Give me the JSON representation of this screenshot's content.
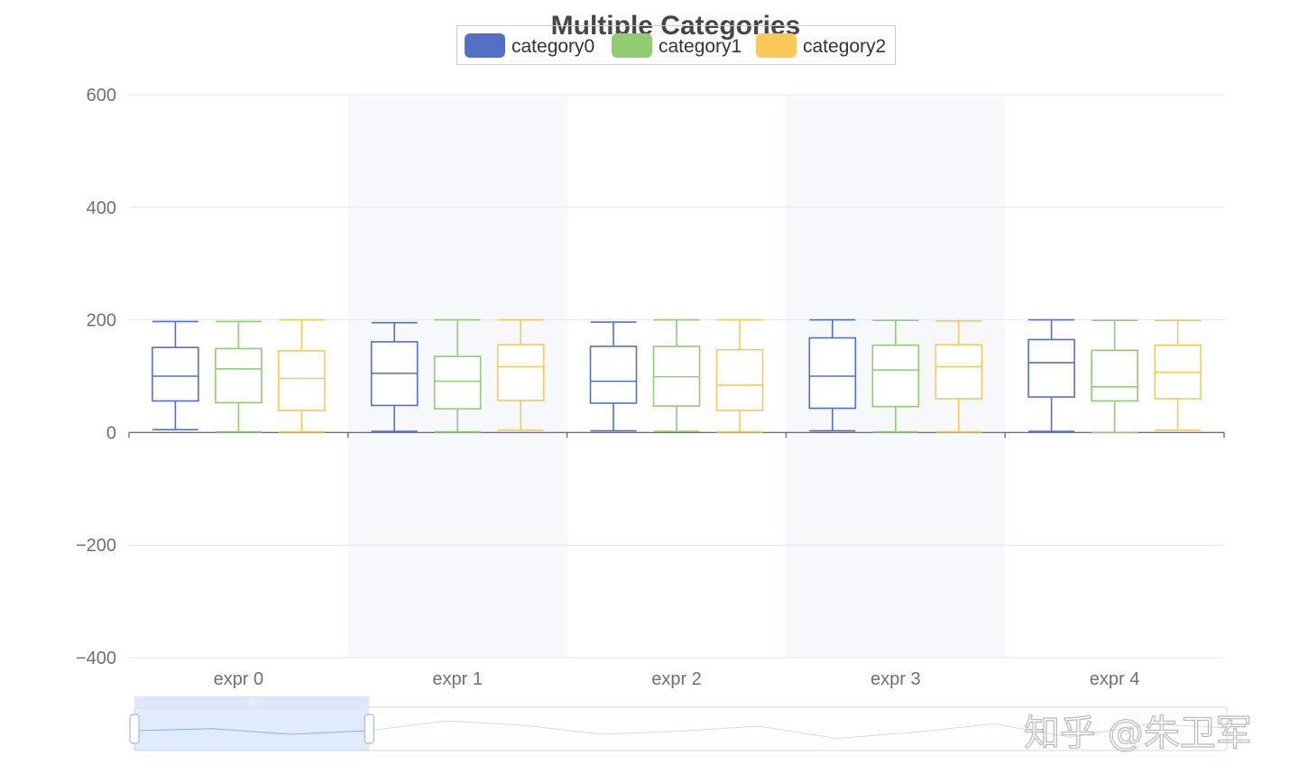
{
  "chart_data": {
    "type": "boxplot",
    "title": "Multiple Categories",
    "categories": [
      "expr 0",
      "expr 1",
      "expr 2",
      "expr 3",
      "expr 4"
    ],
    "ylim": [
      -400,
      600
    ],
    "yticks": [
      -400,
      -200,
      0,
      200,
      400,
      600
    ],
    "ytick_labels": [
      "−400",
      "−200",
      "0",
      "200",
      "400",
      "600"
    ],
    "grid": true,
    "legend_position": "top-center",
    "series": [
      {
        "name": "category0",
        "color": "#5470c6",
        "boxes": [
          {
            "min": 5,
            "q1": 56,
            "median": 100,
            "q3": 151,
            "max": 197
          },
          {
            "min": 2,
            "q1": 48,
            "median": 105,
            "q3": 161,
            "max": 195
          },
          {
            "min": 3,
            "q1": 52,
            "median": 91,
            "q3": 153,
            "max": 196
          },
          {
            "min": 3,
            "q1": 43,
            "median": 100,
            "q3": 168,
            "max": 200
          },
          {
            "min": 2,
            "q1": 63,
            "median": 124,
            "q3": 165,
            "max": 200
          }
        ]
      },
      {
        "name": "category1",
        "color": "#91cc75",
        "boxes": [
          {
            "min": 1,
            "q1": 53,
            "median": 113,
            "q3": 149,
            "max": 197
          },
          {
            "min": 1,
            "q1": 42,
            "median": 91,
            "q3": 135,
            "max": 200
          },
          {
            "min": 2,
            "q1": 47,
            "median": 99,
            "q3": 153,
            "max": 200
          },
          {
            "min": 1,
            "q1": 46,
            "median": 111,
            "q3": 155,
            "max": 199
          },
          {
            "min": 0,
            "q1": 56,
            "median": 81,
            "q3": 146,
            "max": 199
          }
        ]
      },
      {
        "name": "category2",
        "color": "#fac858",
        "boxes": [
          {
            "min": 1,
            "q1": 39,
            "median": 96,
            "q3": 145,
            "max": 200
          },
          {
            "min": 4,
            "q1": 57,
            "median": 117,
            "q3": 156,
            "max": 200
          },
          {
            "min": 1,
            "q1": 39,
            "median": 84,
            "q3": 147,
            "max": 200
          },
          {
            "min": 1,
            "q1": 60,
            "median": 117,
            "q3": 156,
            "max": 198
          },
          {
            "min": 4,
            "q1": 60,
            "median": 107,
            "q3": 155,
            "max": 199
          }
        ]
      }
    ],
    "data_zoom": {
      "start_percent": 0,
      "end_percent": 21.5,
      "handle_label": "III"
    }
  },
  "watermark": "知乎 @朱卫军"
}
